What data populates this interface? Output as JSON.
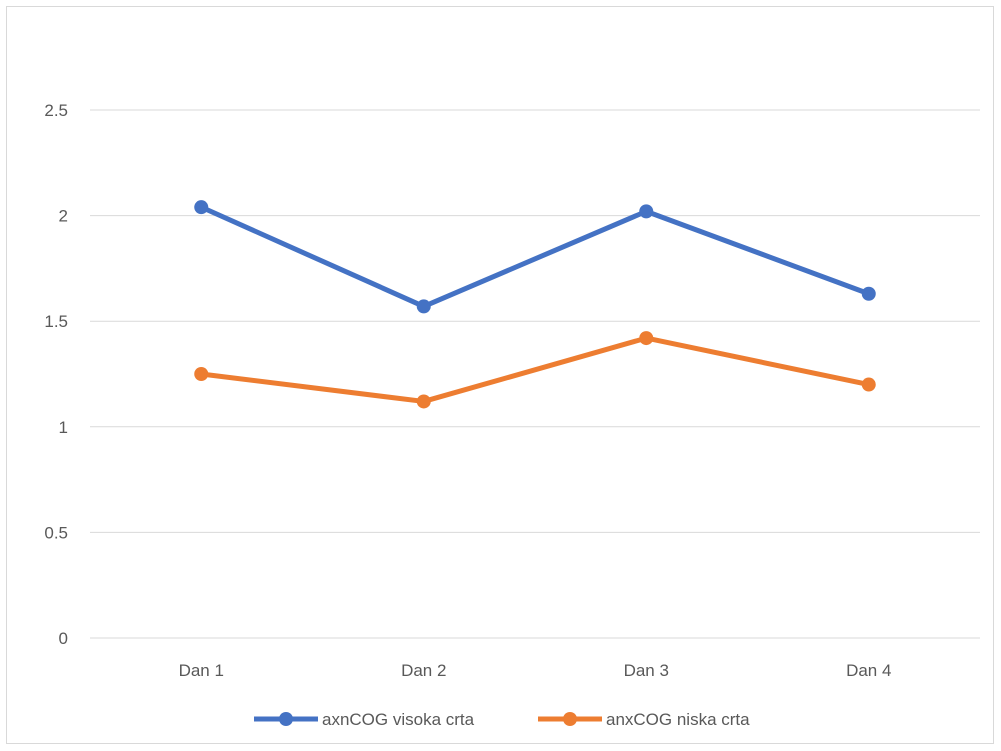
{
  "chart_data": {
    "type": "line",
    "title": "",
    "xlabel": "",
    "ylabel": "",
    "categories": [
      "Dan 1",
      "Dan 2",
      "Dan 3",
      "Dan 4"
    ],
    "y_ticks": [
      "0",
      "0.5",
      "1",
      "1.5",
      "2",
      "2.5"
    ],
    "ylim": [
      0,
      3
    ],
    "grid": true,
    "legend_position": "bottom",
    "series": [
      {
        "name": "axnCOG visoka crta",
        "color": "#4472c4",
        "values": [
          2.04,
          1.57,
          2.02,
          1.63
        ]
      },
      {
        "name": "anxCOG niska crta",
        "color": "#ed7d31",
        "values": [
          1.25,
          1.12,
          1.42,
          1.2
        ]
      }
    ]
  }
}
